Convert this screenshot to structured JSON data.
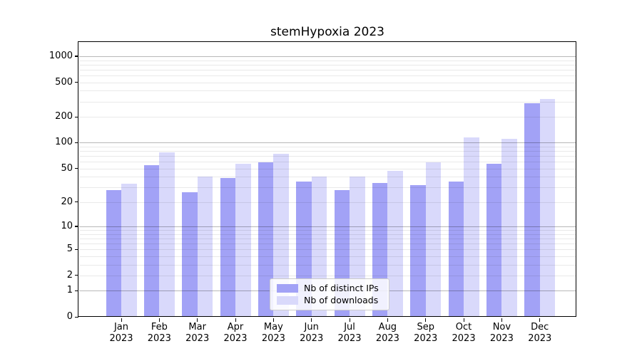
{
  "title": "stemHypoxia 2023",
  "chart_data": {
    "type": "bar",
    "title": "stemHypoxia 2023",
    "categories": [
      "Jan 2023",
      "Feb 2023",
      "Mar 2023",
      "Apr 2023",
      "May 2023",
      "Jun 2023",
      "Jul 2023",
      "Aug 2023",
      "Sep 2023",
      "Oct 2023",
      "Nov 2023",
      "Dec 2023"
    ],
    "series": [
      {
        "name": "Nb of distinct IPs",
        "color": "#a2a2f6",
        "values": [
          28,
          55,
          26,
          39,
          59,
          35,
          28,
          34,
          32,
          35,
          57,
          285
        ]
      },
      {
        "name": "Nb of downloads",
        "color": "#d9d9fb",
        "values": [
          33,
          77,
          40,
          57,
          75,
          40,
          40,
          47,
          59,
          115,
          110,
          320
        ]
      }
    ],
    "y_axis": {
      "scale": "log10(1+x)",
      "tick_values": [
        0,
        1,
        2,
        5,
        10,
        20,
        50,
        100,
        200,
        500,
        1000
      ],
      "major_gridlines": [
        1,
        10,
        100,
        1000
      ],
      "minor_gridlines": [
        2,
        3,
        4,
        5,
        6,
        7,
        8,
        9,
        20,
        30,
        40,
        50,
        60,
        70,
        80,
        90,
        200,
        300,
        400,
        500,
        600,
        700,
        800,
        900
      ]
    },
    "x_axis": {
      "year_line": "2023"
    },
    "legend_position": "inside-bottom-center",
    "grid": true
  },
  "colors": {
    "bar_distinct_ips": "#a2a2f6",
    "bar_downloads": "#d9d9fb",
    "grid_minor": "rgba(0,0,0,0.085)",
    "grid_major": "rgba(0,0,0,0.28)",
    "axis": "#000000",
    "legend_border": "#cccccc",
    "legend_background": "rgba(255,255,255,0.85)"
  }
}
